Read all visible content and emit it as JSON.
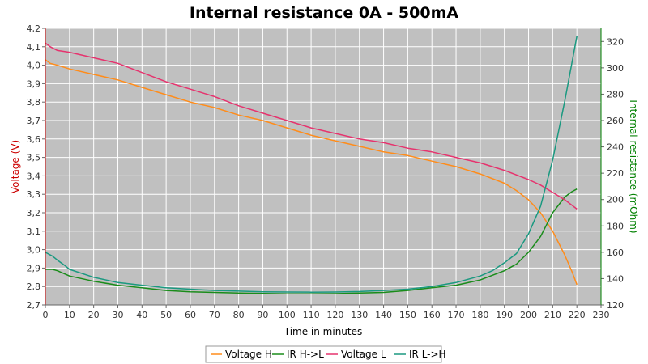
{
  "chart_data": {
    "type": "line",
    "title": "Internal resistance  0A - 500mA",
    "xlabel": "Time in minutes",
    "ylabel_left": "Voltage (V)",
    "ylabel_right": "Internal resistance (mOhm)",
    "xlim": [
      0,
      230
    ],
    "ylim_left": [
      2.7,
      4.2
    ],
    "ylim_right": [
      120,
      330
    ],
    "x_ticks": [
      "0",
      "10",
      "20",
      "30",
      "40",
      "50",
      "60",
      "70",
      "80",
      "90",
      "100",
      "110",
      "120",
      "130",
      "140",
      "150",
      "160",
      "170",
      "180",
      "190",
      "200",
      "210",
      "220",
      "230"
    ],
    "y_left_ticks": [
      "2,7",
      "2,8",
      "2,9",
      "3,0",
      "3,1",
      "3,2",
      "3,3",
      "3,4",
      "3,5",
      "3,6",
      "3,7",
      "3,8",
      "3,9",
      "4,0",
      "4,1",
      "4,2"
    ],
    "y_right_ticks": [
      "120",
      "140",
      "160",
      "180",
      "200",
      "220",
      "240",
      "260",
      "280",
      "300",
      "320"
    ],
    "grid": true,
    "legend_position": "bottom",
    "colors": {
      "plot_bg": "#c0c0c0",
      "grid": "#ffffff",
      "left_axis": "#cc0000",
      "right_axis": "#008000"
    },
    "series": [
      {
        "name": "Voltage H",
        "axis": "left",
        "color": "#ff8c1a",
        "points": [
          [
            0,
            4.03
          ],
          [
            2,
            4.01
          ],
          [
            5,
            4.0
          ],
          [
            10,
            3.98
          ],
          [
            20,
            3.95
          ],
          [
            30,
            3.92
          ],
          [
            40,
            3.88
          ],
          [
            50,
            3.84
          ],
          [
            60,
            3.8
          ],
          [
            70,
            3.77
          ],
          [
            80,
            3.73
          ],
          [
            90,
            3.7
          ],
          [
            100,
            3.66
          ],
          [
            110,
            3.62
          ],
          [
            120,
            3.59
          ],
          [
            130,
            3.56
          ],
          [
            140,
            3.53
          ],
          [
            150,
            3.51
          ],
          [
            160,
            3.48
          ],
          [
            170,
            3.45
          ],
          [
            180,
            3.41
          ],
          [
            190,
            3.36
          ],
          [
            195,
            3.32
          ],
          [
            200,
            3.27
          ],
          [
            205,
            3.2
          ],
          [
            210,
            3.1
          ],
          [
            215,
            2.97
          ],
          [
            218,
            2.88
          ],
          [
            220,
            2.81
          ]
        ]
      },
      {
        "name": "IR H->L",
        "axis": "right",
        "color": "#1a8c1a",
        "points": [
          [
            0,
            147
          ],
          [
            3,
            147
          ],
          [
            5,
            146
          ],
          [
            10,
            142
          ],
          [
            20,
            138
          ],
          [
            30,
            135
          ],
          [
            40,
            133
          ],
          [
            50,
            131
          ],
          [
            60,
            130
          ],
          [
            70,
            129.5
          ],
          [
            80,
            129
          ],
          [
            90,
            128.7
          ],
          [
            100,
            128.5
          ],
          [
            110,
            128.5
          ],
          [
            120,
            128.6
          ],
          [
            130,
            129
          ],
          [
            140,
            129.5
          ],
          [
            150,
            131
          ],
          [
            160,
            133
          ],
          [
            170,
            135
          ],
          [
            180,
            139
          ],
          [
            190,
            146
          ],
          [
            195,
            151
          ],
          [
            200,
            160
          ],
          [
            205,
            172
          ],
          [
            210,
            190
          ],
          [
            215,
            202
          ],
          [
            218,
            206
          ],
          [
            220,
            208
          ]
        ]
      },
      {
        "name": "Voltage L",
        "axis": "left",
        "color": "#e6336e",
        "points": [
          [
            0,
            4.12
          ],
          [
            2,
            4.1
          ],
          [
            5,
            4.08
          ],
          [
            10,
            4.07
          ],
          [
            20,
            4.04
          ],
          [
            30,
            4.01
          ],
          [
            40,
            3.96
          ],
          [
            50,
            3.91
          ],
          [
            60,
            3.87
          ],
          [
            70,
            3.83
          ],
          [
            80,
            3.78
          ],
          [
            90,
            3.74
          ],
          [
            100,
            3.7
          ],
          [
            110,
            3.66
          ],
          [
            120,
            3.63
          ],
          [
            130,
            3.6
          ],
          [
            140,
            3.58
          ],
          [
            150,
            3.55
          ],
          [
            160,
            3.53
          ],
          [
            170,
            3.5
          ],
          [
            180,
            3.47
          ],
          [
            190,
            3.43
          ],
          [
            200,
            3.38
          ],
          [
            205,
            3.35
          ],
          [
            210,
            3.31
          ],
          [
            215,
            3.27
          ],
          [
            220,
            3.22
          ]
        ]
      },
      {
        "name": "IR L->H",
        "axis": "right",
        "color": "#1a9980",
        "points": [
          [
            0,
            160
          ],
          [
            3,
            157
          ],
          [
            5,
            154
          ],
          [
            8,
            150
          ],
          [
            10,
            147
          ],
          [
            20,
            141
          ],
          [
            30,
            137
          ],
          [
            40,
            135
          ],
          [
            50,
            133
          ],
          [
            60,
            132
          ],
          [
            70,
            131
          ],
          [
            80,
            130.5
          ],
          [
            90,
            130
          ],
          [
            100,
            129.8
          ],
          [
            110,
            129.7
          ],
          [
            120,
            129.8
          ],
          [
            130,
            130.2
          ],
          [
            140,
            131
          ],
          [
            150,
            132
          ],
          [
            160,
            134
          ],
          [
            170,
            137
          ],
          [
            180,
            142
          ],
          [
            185,
            146
          ],
          [
            190,
            152
          ],
          [
            195,
            159
          ],
          [
            200,
            174
          ],
          [
            205,
            195
          ],
          [
            210,
            230
          ],
          [
            215,
            275
          ],
          [
            220,
            324
          ]
        ]
      }
    ]
  }
}
